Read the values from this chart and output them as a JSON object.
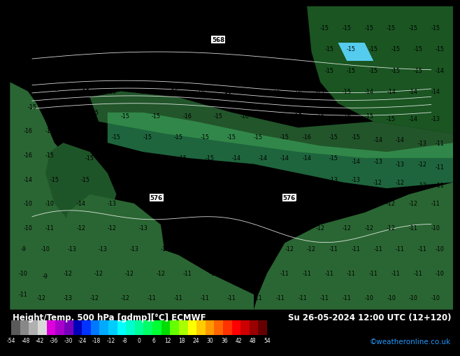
{
  "title_left": "Height/Temp. 500 hPa [gdmp][°C] ECMWF",
  "title_right": "Su 26-05-2024 12:00 UTC (12+120)",
  "credit": "©weatheronline.co.uk",
  "colorbar_labels": [
    "-54",
    "-48",
    "-42",
    "-36",
    "-30",
    "-24",
    "-18",
    "-12",
    "-8",
    "0",
    "6",
    "12",
    "18",
    "24",
    "30",
    "36",
    "42",
    "48",
    "54"
  ],
  "cbar_colors": [
    "#5a5a5a",
    "#888888",
    "#b0b0b0",
    "#d8d8d8",
    "#dd00dd",
    "#aa00cc",
    "#7700bb",
    "#0000bb",
    "#0033ff",
    "#0077ff",
    "#00aaff",
    "#00ccff",
    "#00ffff",
    "#00ffcc",
    "#00ff99",
    "#00ff66",
    "#00ff33",
    "#00dd00",
    "#66ff00",
    "#aaff00",
    "#ffff00",
    "#ffcc00",
    "#ff9900",
    "#ff6600",
    "#ff3300",
    "#ff0000",
    "#cc0000",
    "#990000",
    "#660000"
  ],
  "bg_black": "#000000",
  "map_cyan": "#55ccee",
  "map_green_light": "#339944",
  "map_green_mid": "#226633",
  "map_green_dark": "#1a4422",
  "map_blue_dark": "#0077aa",
  "contour_color": "#000000",
  "contour_color_left": "#000000",
  "label_568_color": "#000000",
  "label_576_color": "#000000",
  "title_fontsize": 8.5,
  "credit_fontsize": 7.5,
  "tick_fontsize": 5.5,
  "contour_fontsize": 5.8
}
